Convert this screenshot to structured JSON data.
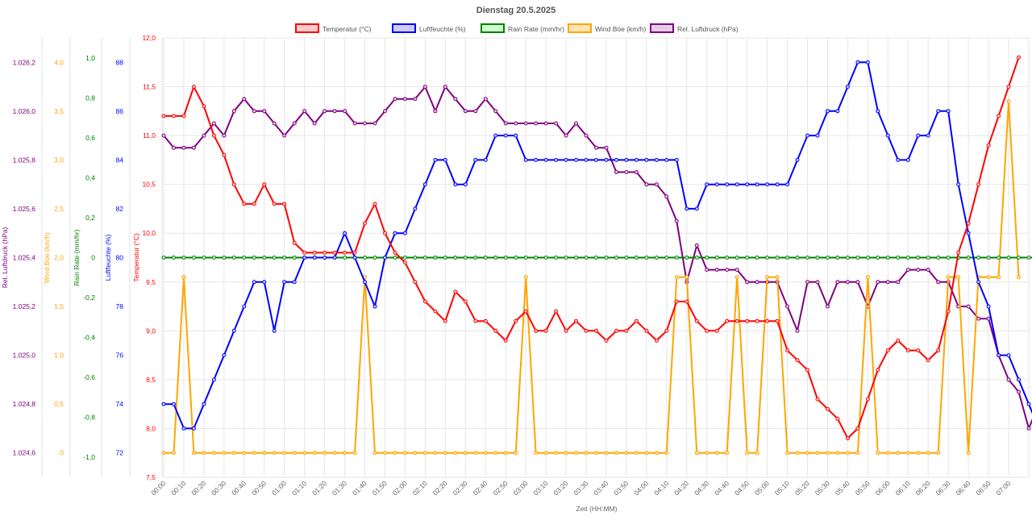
{
  "chart_data": {
    "type": "line",
    "title": "Dienstag 20.5.2025",
    "xlabel": "Zeit (HH:MM)",
    "x_ticks": [
      "00:00",
      "00:10",
      "00:20",
      "00:30",
      "00:40",
      "00:50",
      "01:00",
      "01:10",
      "01:20",
      "01:30",
      "01:40",
      "01:50",
      "02:00",
      "02:10",
      "02:20",
      "02:30",
      "02:40",
      "02:50",
      "03:00",
      "03:10",
      "03:20",
      "03:30",
      "03:40",
      "03:50",
      "04:00",
      "04:10",
      "04:20",
      "04:30",
      "04:40",
      "04:50",
      "05:00",
      "05:10",
      "05:20",
      "05:30",
      "05:40",
      "05:50",
      "06:00",
      "06:10",
      "06:20",
      "06:30",
      "06:40",
      "06:50",
      "07:00"
    ],
    "x_range": [
      0,
      430
    ],
    "interval_minutes": 5,
    "axes": [
      {
        "id": "press",
        "title": "Rel. Luftdruck (hPa)",
        "color": "#800080",
        "min": 1024.5,
        "max": 1026.3,
        "ticks": [
          1024.6,
          1024.8,
          1025.0,
          1025.2,
          1025.4,
          1025.6,
          1025.8,
          1026.0,
          1026.2
        ],
        "tick_labels": [
          "1.024,6",
          "1.024,8",
          "1.025,0",
          "1.025,2",
          "1.025,4",
          "1.025,6",
          "1.025,8",
          "1.026,0",
          "1.026,2"
        ]
      },
      {
        "id": "gust",
        "title": "Wind Böe (km/h)",
        "color": "#ffa500",
        "min": -0.25,
        "max": 4.25,
        "ticks": [
          0,
          0.5,
          1,
          1.5,
          2,
          2.5,
          3,
          3.5,
          4
        ],
        "tick_labels": [
          "0",
          "0,5",
          "1,0",
          "1,5",
          "2,0",
          "2,5",
          "3,0",
          "3,5",
          "4,0"
        ]
      },
      {
        "id": "rain",
        "title": "Rain Rate (mm/hr)",
        "color": "#008000",
        "min": -1.1,
        "max": 1.1,
        "ticks": [
          -1,
          -0.8,
          -0.6,
          -0.4,
          -0.2,
          0,
          0.2,
          0.4,
          0.6,
          0.8,
          1
        ],
        "tick_labels": [
          "-1,0",
          "-0,8",
          "-0,6",
          "-0,4",
          "-0,2",
          "0",
          "0,2",
          "0,4",
          "0,6",
          "0,8",
          "1,0"
        ]
      },
      {
        "id": "hum",
        "title": "Luftfeuchte (%)",
        "color": "#0000ff",
        "min": 71,
        "max": 89,
        "ticks": [
          72,
          74,
          76,
          78,
          80,
          82,
          84,
          86,
          88
        ],
        "tick_labels": [
          "72",
          "74",
          "76",
          "78",
          "80",
          "82",
          "84",
          "86",
          "88"
        ]
      },
      {
        "id": "temp",
        "title": "Temperatur (°C)",
        "color": "#ff0000",
        "min": 7.5,
        "max": 12,
        "ticks": [
          7.5,
          8,
          8.5,
          9,
          9.5,
          10,
          10.5,
          11,
          11.5,
          12
        ],
        "tick_labels": [
          "7,5",
          "8,0",
          "8,5",
          "9,0",
          "9,5",
          "10,0",
          "10,5",
          "11,0",
          "11,5",
          "12,0"
        ]
      }
    ],
    "series": [
      {
        "name": "Temperatur (°C)",
        "axis": "temp",
        "color": "#ff0000",
        "fill": "#ffcccc",
        "values": [
          11.2,
          11.2,
          11.2,
          11.5,
          11.3,
          11.0,
          10.8,
          10.5,
          10.3,
          10.3,
          10.5,
          10.3,
          10.3,
          9.9,
          9.8,
          9.8,
          9.8,
          9.8,
          9.8,
          9.8,
          10.1,
          10.3,
          10.0,
          9.8,
          9.7,
          9.5,
          9.3,
          9.2,
          9.1,
          9.4,
          9.3,
          9.1,
          9.1,
          9.0,
          8.9,
          9.1,
          9.2,
          9.0,
          9.0,
          9.2,
          9.0,
          9.1,
          9.0,
          9.0,
          8.9,
          9.0,
          9.0,
          9.1,
          9.0,
          8.9,
          9.0,
          9.3,
          9.3,
          9.1,
          9.0,
          9.0,
          9.1,
          9.1,
          9.1,
          9.1,
          9.1,
          9.1,
          8.8,
          8.7,
          8.6,
          8.3,
          8.2,
          8.1,
          7.9,
          8.0,
          8.3,
          8.6,
          8.8,
          8.9,
          8.8,
          8.8,
          8.7,
          8.8,
          9.2,
          9.8,
          10.1,
          10.5,
          10.9,
          11.2,
          11.5,
          11.8
        ]
      },
      {
        "name": "Luftfeuchte (%)",
        "axis": "hum",
        "color": "#0000ff",
        "fill": "#ccccff",
        "values": [
          74,
          74,
          73,
          73,
          74,
          75,
          76,
          77,
          78,
          79,
          79,
          77,
          79,
          79,
          80,
          80,
          80,
          80,
          81,
          80,
          79,
          78,
          80,
          81,
          81,
          82,
          83,
          84,
          84,
          83,
          83,
          84,
          84,
          85,
          85,
          85,
          84,
          84,
          84,
          84,
          84,
          84,
          84,
          84,
          84,
          84,
          84,
          84,
          84,
          84,
          84,
          84,
          82,
          82,
          83,
          83,
          83,
          83,
          83,
          83,
          83,
          83,
          83,
          84,
          85,
          85,
          86,
          86,
          87,
          88,
          88,
          86,
          85,
          84,
          84,
          85,
          85,
          86,
          86,
          83,
          81,
          79,
          78,
          76,
          76,
          75,
          74,
          73
        ]
      },
      {
        "name": "Rain Rate (mm/hr)",
        "axis": "rain",
        "color": "#008000",
        "fill": "#ccffcc",
        "values": [
          0,
          0,
          0,
          0,
          0,
          0,
          0,
          0,
          0,
          0,
          0,
          0,
          0,
          0,
          0,
          0,
          0,
          0,
          0,
          0,
          0,
          0,
          0,
          0,
          0,
          0,
          0,
          0,
          0,
          0,
          0,
          0,
          0,
          0,
          0,
          0,
          0,
          0,
          0,
          0,
          0,
          0,
          0,
          0,
          0,
          0,
          0,
          0,
          0,
          0,
          0,
          0,
          0,
          0,
          0,
          0,
          0,
          0,
          0,
          0,
          0,
          0,
          0,
          0,
          0,
          0,
          0,
          0,
          0,
          0,
          0,
          0,
          0,
          0,
          0,
          0,
          0,
          0,
          0,
          0,
          0,
          0,
          0,
          0,
          0,
          0,
          0,
          0
        ]
      },
      {
        "name": "Wind Böe (km/h)",
        "axis": "gust",
        "color": "#ffa500",
        "fill": "#ffe4b3",
        "values": [
          0,
          0,
          1.8,
          0,
          0,
          0,
          0,
          0,
          0,
          0,
          0,
          0,
          0,
          0,
          0,
          0,
          0,
          0,
          0,
          0,
          1.8,
          0,
          0,
          0,
          0,
          0,
          0,
          0,
          0,
          0,
          0,
          0,
          0,
          0,
          0,
          0,
          1.8,
          0,
          0,
          0,
          0,
          0,
          0,
          0,
          0,
          0,
          0,
          0,
          0,
          0,
          0,
          1.8,
          1.8,
          0,
          0,
          0,
          0,
          1.8,
          0,
          0,
          1.8,
          1.8,
          0,
          0,
          0,
          0,
          0,
          0,
          0,
          0,
          1.8,
          0,
          0,
          0,
          0,
          0,
          0,
          0,
          1.8,
          1.8,
          0,
          1.8,
          1.8,
          1.8,
          3.6,
          1.8
        ]
      },
      {
        "name": "Rel. Luftdruck (hPa)",
        "axis": "press",
        "color": "#800080",
        "fill": "#e6cce6",
        "values": [
          1025.9,
          1025.85,
          1025.85,
          1025.85,
          1025.9,
          1025.95,
          1025.9,
          1026.0,
          1026.05,
          1026.0,
          1026.0,
          1025.95,
          1025.9,
          1025.95,
          1026.0,
          1025.95,
          1026.0,
          1026.0,
          1026.0,
          1025.95,
          1025.95,
          1025.95,
          1026.0,
          1026.05,
          1026.05,
          1026.05,
          1026.1,
          1026.0,
          1026.1,
          1026.05,
          1026.0,
          1026.0,
          1026.05,
          1026.0,
          1025.95,
          1025.95,
          1025.95,
          1025.95,
          1025.95,
          1025.95,
          1025.9,
          1025.95,
          1025.9,
          1025.85,
          1025.85,
          1025.75,
          1025.75,
          1025.75,
          1025.7,
          1025.7,
          1025.65,
          1025.55,
          1025.3,
          1025.45,
          1025.35,
          1025.35,
          1025.35,
          1025.35,
          1025.3,
          1025.3,
          1025.3,
          1025.3,
          1025.2,
          1025.1,
          1025.3,
          1025.3,
          1025.2,
          1025.3,
          1025.3,
          1025.3,
          1025.2,
          1025.3,
          1025.3,
          1025.3,
          1025.35,
          1025.35,
          1025.35,
          1025.3,
          1025.3,
          1025.2,
          1025.2,
          1025.15,
          1025.15,
          1025.0,
          1024.9,
          1024.85,
          1024.7,
          1024.8
        ]
      }
    ]
  }
}
